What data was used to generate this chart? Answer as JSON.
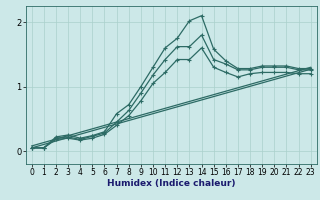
{
  "xlabel": "Humidex (Indice chaleur)",
  "bg_color": "#cce8e8",
  "line_color": "#2d6b65",
  "grid_color": "#aad0cc",
  "xlim": [
    -0.5,
    23.5
  ],
  "ylim": [
    -0.2,
    2.25
  ],
  "yticks": [
    0,
    1,
    2
  ],
  "xticks": [
    0,
    1,
    2,
    3,
    4,
    5,
    6,
    7,
    8,
    9,
    10,
    11,
    12,
    13,
    14,
    15,
    16,
    17,
    18,
    19,
    20,
    21,
    22,
    23
  ],
  "series_with_markers": [
    [
      0.05,
      0.05,
      0.2,
      0.22,
      0.18,
      0.23,
      0.28,
      0.45,
      0.63,
      0.9,
      1.18,
      1.42,
      1.62,
      1.62,
      1.8,
      1.42,
      1.35,
      1.26,
      1.26,
      1.3,
      1.3,
      1.3,
      1.26,
      1.26
    ],
    [
      0.05,
      0.05,
      0.22,
      0.25,
      0.2,
      0.24,
      0.3,
      0.58,
      0.72,
      1.0,
      1.3,
      1.6,
      1.75,
      2.02,
      2.1,
      1.58,
      1.4,
      1.28,
      1.28,
      1.32,
      1.32,
      1.32,
      1.28,
      1.28
    ],
    [
      0.05,
      0.05,
      0.18,
      0.2,
      0.17,
      0.2,
      0.26,
      0.4,
      0.55,
      0.78,
      1.05,
      1.22,
      1.42,
      1.42,
      1.6,
      1.3,
      1.22,
      1.15,
      1.2,
      1.22,
      1.22,
      1.22,
      1.2,
      1.2
    ]
  ],
  "series_linear": [
    [
      0.05,
      1.27
    ],
    [
      0.08,
      1.3
    ]
  ],
  "marker_size": 3,
  "linewidth": 0.9,
  "xlabel_color": "#1a1a6e",
  "xlabel_fontsize": 6.5,
  "tick_fontsize": 5.5
}
